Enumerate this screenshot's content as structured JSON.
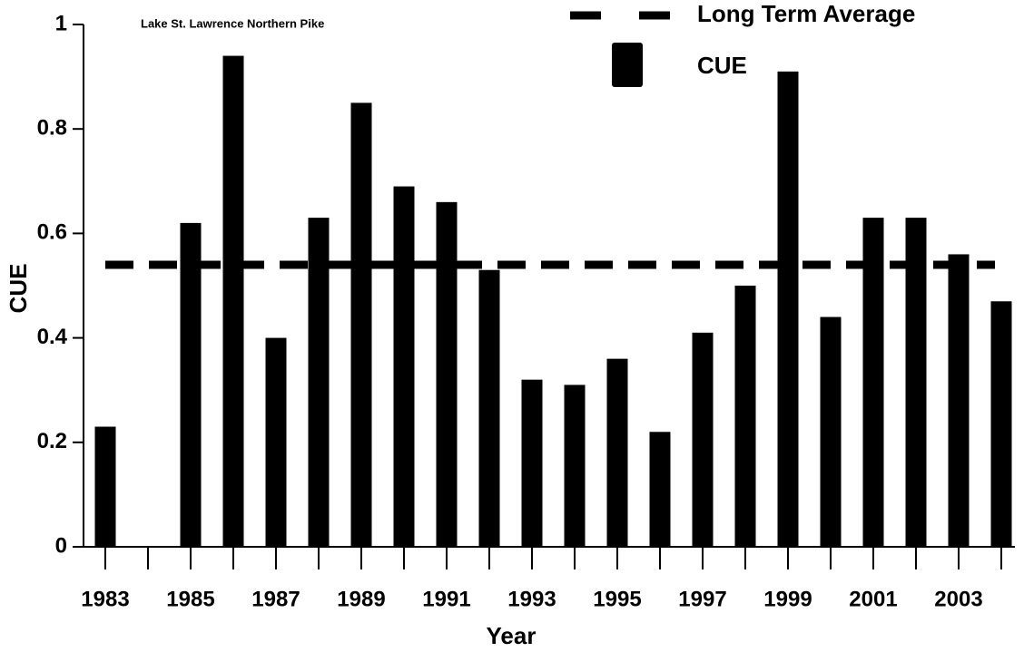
{
  "chart_data": {
    "type": "bar",
    "title": "Lake St. Lawrence Northern Pike",
    "xlabel": "Year",
    "ylabel": "CUE",
    "categories": [
      "1983",
      null,
      "1985",
      null,
      "1987",
      null,
      "1989",
      null,
      "1991",
      null,
      "1993",
      null,
      "1995",
      null,
      "1997",
      null,
      "1999",
      null,
      "2001",
      null,
      "2003",
      null
    ],
    "series": [
      {
        "name": "CUE",
        "color": "#000000",
        "values": [
          0.23,
          null,
          0.62,
          0.94,
          0.4,
          0.63,
          0.85,
          0.69,
          0.66,
          0.53,
          0.32,
          0.31,
          0.36,
          0.22,
          0.41,
          0.5,
          0.91,
          0.44,
          0.63,
          0.63,
          0.56,
          0.47
        ]
      }
    ],
    "reference_line": {
      "name": "Long Term Average",
      "value": 0.54,
      "color": "#000000"
    },
    "ylim": [
      0,
      1
    ],
    "yticks": [
      0,
      0.2,
      0.4,
      0.6,
      0.8,
      1
    ],
    "grid": false,
    "legend": "top-right"
  }
}
